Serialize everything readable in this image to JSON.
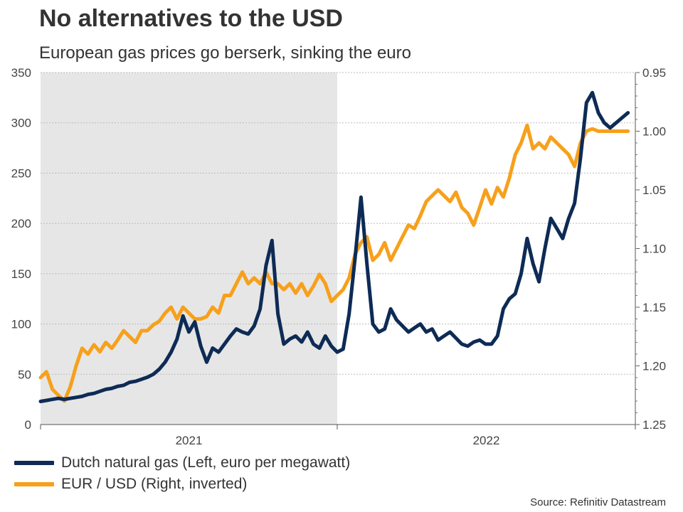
{
  "title": "No alternatives to the USD",
  "subtitle": "European gas prices go berserk, sinking the euro",
  "source": "Source: Refinitiv Datastream",
  "colors": {
    "gas": "#0d2b55",
    "eurusd": "#f7a01b",
    "shade": "#e6e6e6",
    "grid": "#bbbbbb"
  },
  "legend": [
    {
      "label": "Dutch natural gas (Left, euro per megawatt)",
      "color": "#0d2b55"
    },
    {
      "label": "EUR / USD (Right, inverted)",
      "color": "#f7a01b"
    }
  ],
  "chart_data": {
    "type": "line",
    "title": "No alternatives to the USD",
    "subtitle": "European gas prices go berserk, sinking the euro",
    "x_axis": {
      "labels": [
        "2021",
        "2022"
      ],
      "range": [
        "2021-01",
        "2022-12-31"
      ],
      "shaded_period": [
        "2021-01",
        "2021-12-31"
      ]
    },
    "y_left": {
      "ticks": [
        "0",
        "50",
        "100",
        "150",
        "200",
        "250",
        "300",
        "350"
      ],
      "range": [
        0,
        350
      ]
    },
    "y_right": {
      "ticks": [
        "0.95",
        "1.00",
        "1.05",
        "1.10",
        "1.15",
        "1.20",
        "1.25"
      ],
      "range": [
        0.95,
        1.25
      ],
      "inverted": true
    },
    "series": [
      {
        "name": "Dutch natural gas (Left, euro per megawatt)",
        "axis": "left",
        "x": [
          0.0,
          0.02,
          0.04,
          0.06,
          0.08,
          0.1,
          0.12,
          0.14,
          0.16,
          0.18,
          0.2,
          0.22,
          0.24,
          0.26,
          0.28,
          0.3,
          0.32,
          0.34,
          0.36,
          0.38,
          0.4,
          0.42,
          0.44,
          0.46,
          0.48,
          0.5,
          0.52,
          0.54,
          0.56,
          0.58,
          0.6,
          0.62,
          0.64,
          0.66,
          0.68,
          0.7,
          0.72,
          0.74,
          0.76,
          0.78,
          0.8,
          0.82,
          0.84,
          0.86,
          0.88,
          0.9,
          0.92,
          0.94,
          0.96,
          0.98,
          1.0,
          1.02,
          1.04,
          1.06,
          1.08,
          1.1,
          1.12,
          1.14,
          1.16,
          1.18,
          1.2,
          1.22,
          1.24,
          1.26,
          1.28,
          1.3,
          1.32,
          1.34,
          1.36,
          1.38,
          1.4,
          1.42,
          1.44,
          1.46,
          1.48,
          1.5,
          1.52,
          1.54,
          1.56,
          1.58,
          1.6,
          1.62,
          1.64,
          1.66,
          1.68,
          1.7,
          1.72,
          1.74,
          1.76,
          1.78,
          1.8,
          1.82,
          1.84,
          1.86,
          1.88,
          1.9,
          1.92,
          1.94,
          1.96,
          1.98
        ],
        "values": [
          23,
          24,
          25,
          26,
          25,
          26,
          27,
          28,
          30,
          31,
          33,
          35,
          36,
          38,
          39,
          42,
          43,
          45,
          47,
          50,
          55,
          62,
          72,
          85,
          108,
          92,
          102,
          78,
          62,
          76,
          72,
          80,
          88,
          95,
          92,
          90,
          98,
          115,
          158,
          183,
          110,
          80,
          85,
          88,
          82,
          92,
          80,
          76,
          88,
          78,
          72,
          75,
          110,
          165,
          226,
          160,
          100,
          92,
          95,
          115,
          104,
          98,
          92,
          96,
          100,
          92,
          95,
          84,
          88,
          92,
          86,
          80,
          78,
          82,
          84,
          80,
          80,
          88,
          115,
          125,
          130,
          150,
          185,
          160,
          142,
          175,
          205,
          195,
          185,
          205,
          220,
          265,
          320,
          330,
          310,
          300,
          295,
          300,
          305,
          310
        ],
        "note": "x is fraction of years from 2021-01"
      },
      {
        "name": "EUR / USD (Right, inverted)",
        "axis": "right",
        "x": [
          0.0,
          0.02,
          0.04,
          0.06,
          0.08,
          0.1,
          0.12,
          0.14,
          0.16,
          0.18,
          0.2,
          0.22,
          0.24,
          0.26,
          0.28,
          0.3,
          0.32,
          0.34,
          0.36,
          0.38,
          0.4,
          0.42,
          0.44,
          0.46,
          0.48,
          0.5,
          0.52,
          0.54,
          0.56,
          0.58,
          0.6,
          0.62,
          0.64,
          0.66,
          0.68,
          0.7,
          0.72,
          0.74,
          0.76,
          0.78,
          0.8,
          0.82,
          0.84,
          0.86,
          0.88,
          0.9,
          0.92,
          0.94,
          0.96,
          0.98,
          1.0,
          1.02,
          1.04,
          1.06,
          1.08,
          1.1,
          1.12,
          1.14,
          1.16,
          1.18,
          1.2,
          1.22,
          1.24,
          1.26,
          1.28,
          1.3,
          1.32,
          1.34,
          1.36,
          1.38,
          1.4,
          1.42,
          1.44,
          1.46,
          1.48,
          1.5,
          1.52,
          1.54,
          1.56,
          1.58,
          1.6,
          1.62,
          1.64,
          1.66,
          1.68,
          1.7,
          1.72,
          1.74,
          1.76,
          1.78,
          1.8,
          1.82,
          1.84,
          1.86,
          1.88,
          1.9,
          1.92,
          1.94,
          1.96,
          1.98
        ],
        "values": [
          1.21,
          1.205,
          1.22,
          1.225,
          1.23,
          1.218,
          1.2,
          1.185,
          1.19,
          1.182,
          1.188,
          1.18,
          1.185,
          1.178,
          1.17,
          1.175,
          1.18,
          1.17,
          1.17,
          1.165,
          1.162,
          1.155,
          1.15,
          1.16,
          1.15,
          1.155,
          1.16,
          1.16,
          1.158,
          1.15,
          1.155,
          1.14,
          1.14,
          1.13,
          1.12,
          1.13,
          1.125,
          1.13,
          1.12,
          1.13,
          1.13,
          1.135,
          1.13,
          1.138,
          1.13,
          1.14,
          1.132,
          1.122,
          1.13,
          1.145,
          1.14,
          1.135,
          1.125,
          1.105,
          1.095,
          1.09,
          1.11,
          1.105,
          1.095,
          1.11,
          1.1,
          1.09,
          1.08,
          1.083,
          1.072,
          1.06,
          1.055,
          1.05,
          1.055,
          1.06,
          1.052,
          1.065,
          1.07,
          1.08,
          1.065,
          1.05,
          1.062,
          1.048,
          1.056,
          1.04,
          1.02,
          1.01,
          0.995,
          1.015,
          1.01,
          1.015,
          1.005,
          1.01,
          1.015,
          1.02,
          1.03,
          1.01,
          1.0,
          0.998,
          1.0,
          1.0,
          1.0,
          1.0,
          1.0,
          1.0
        ],
        "note": "x is fraction of years from 2021-01"
      }
    ]
  }
}
